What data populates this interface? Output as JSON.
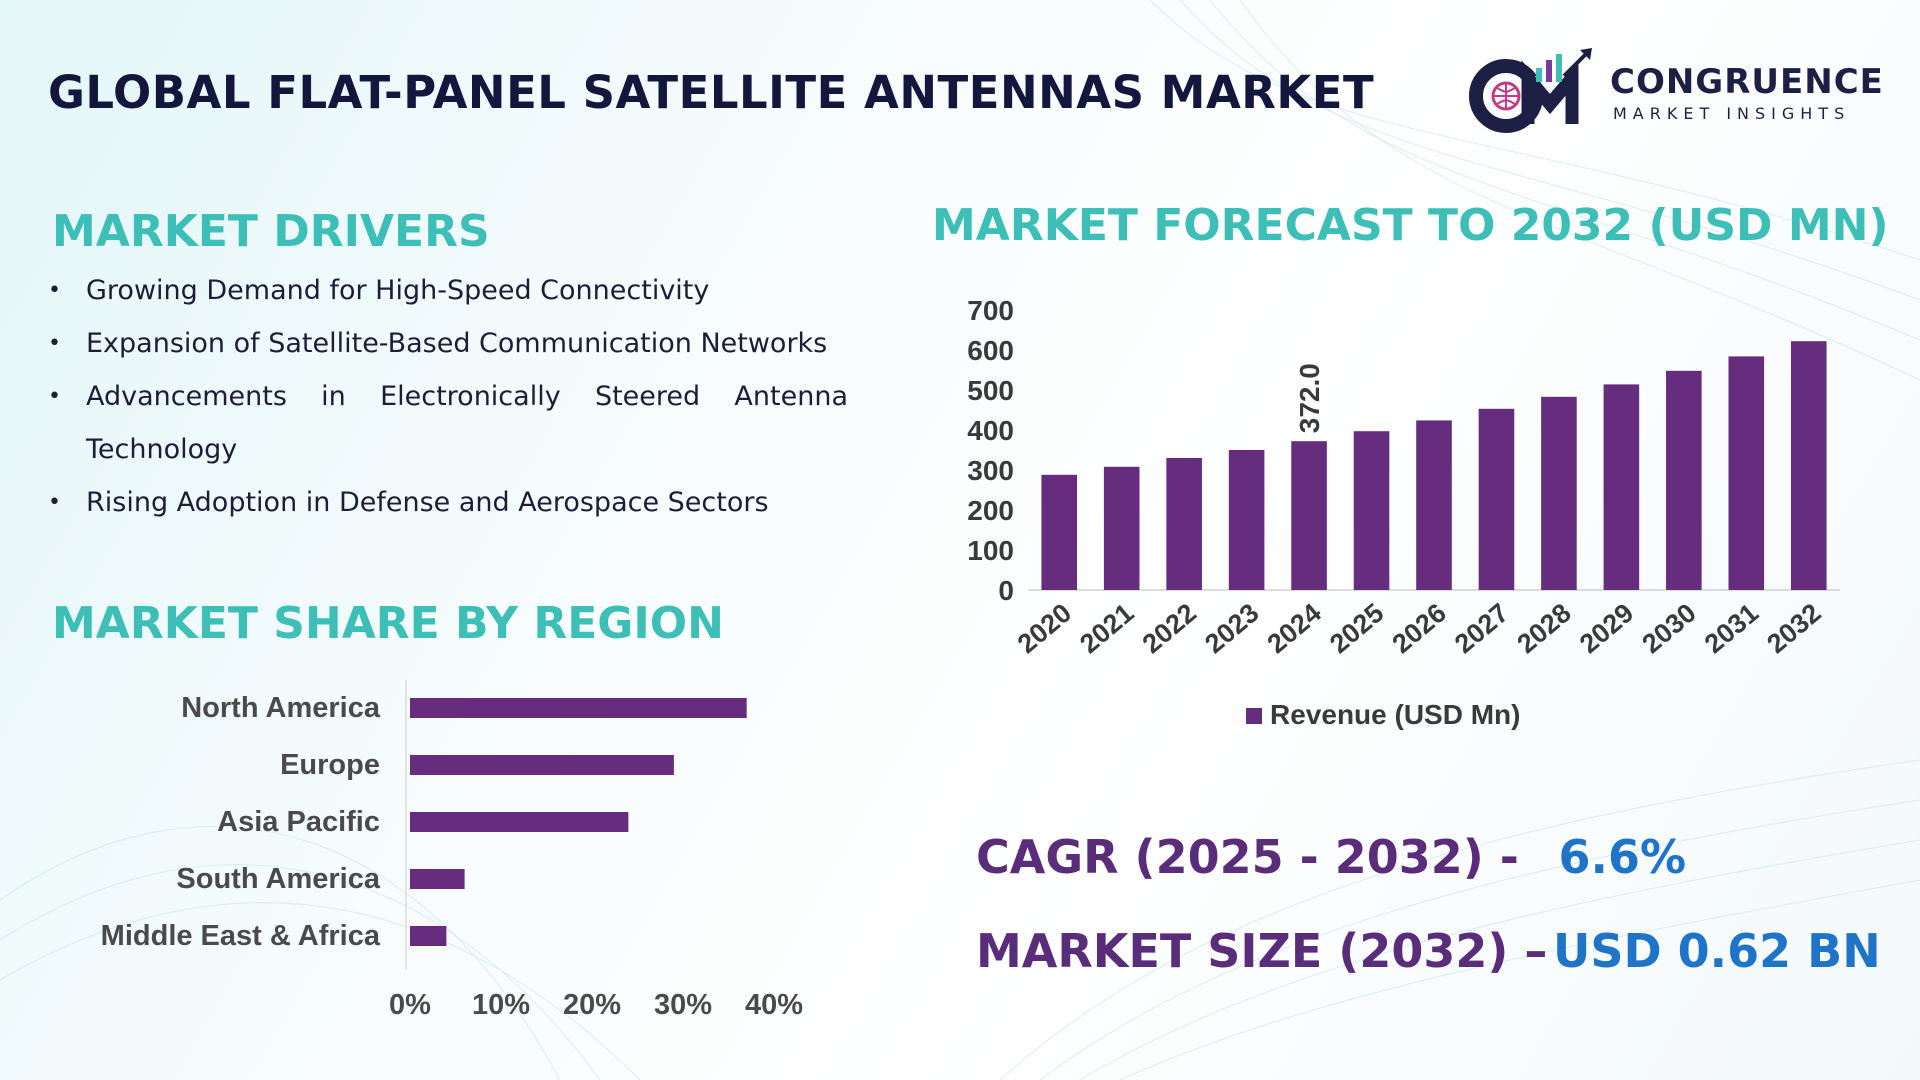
{
  "title": "GLOBAL FLAT-PANEL SATELLITE ANTENNAS MARKET",
  "logo": {
    "name": "CONGRUENCE",
    "subtitle": "MARKET INSIGHTS"
  },
  "drivers": {
    "heading": "MARKET DRIVERS",
    "items": [
      "Growing Demand for High-Speed Connectivity",
      "Expansion of Satellite-Based Communication Networks",
      "Advancements in Electronically Steered Antenna Technology",
      "Rising Adoption in Defense and Aerospace Sectors"
    ]
  },
  "forecast": {
    "heading": "MARKET FORECAST TO 2032 (USD MN)"
  },
  "region": {
    "heading": "MARKET SHARE BY REGION"
  },
  "stats": {
    "cagr_label": "CAGR (2025 - 2032) -",
    "cagr_value": "6.6%",
    "size_label": "MARKET SIZE (2032) –",
    "size_value": "USD 0.62 BN"
  },
  "colors": {
    "bar": "#662d7f",
    "accent": "#3dbfb7",
    "value": "#1f74c8"
  },
  "chart_data": [
    {
      "type": "bar",
      "title": "MARKET FORECAST TO 2032 (USD MN)",
      "categories": [
        "2020",
        "2021",
        "2022",
        "2023",
        "2024",
        "2025",
        "2026",
        "2027",
        "2028",
        "2029",
        "2030",
        "2031",
        "2032"
      ],
      "series": [
        {
          "name": "Revenue (USD Mn)",
          "values": [
            288,
            308,
            330,
            350,
            372.0,
            397,
            424,
            453,
            483,
            514,
            548,
            584,
            622
          ]
        }
      ],
      "data_labels": [
        {
          "category": "2024",
          "label": "372.0"
        }
      ],
      "yticks": [
        0,
        100,
        200,
        300,
        400,
        500,
        600,
        700
      ],
      "ylim": [
        0,
        700
      ],
      "legend": "bottom",
      "xlabel": "",
      "ylabel": ""
    },
    {
      "type": "bar",
      "orientation": "horizontal",
      "title": "MARKET SHARE BY REGION",
      "categories": [
        "North America",
        "Europe",
        "Asia Pacific",
        "South America",
        "Middle East & Africa"
      ],
      "values": [
        37,
        29,
        24,
        6,
        4
      ],
      "xticks": [
        "0%",
        "10%",
        "20%",
        "30%",
        "40%"
      ],
      "xlim": [
        0,
        40
      ],
      "unit": "%"
    }
  ]
}
